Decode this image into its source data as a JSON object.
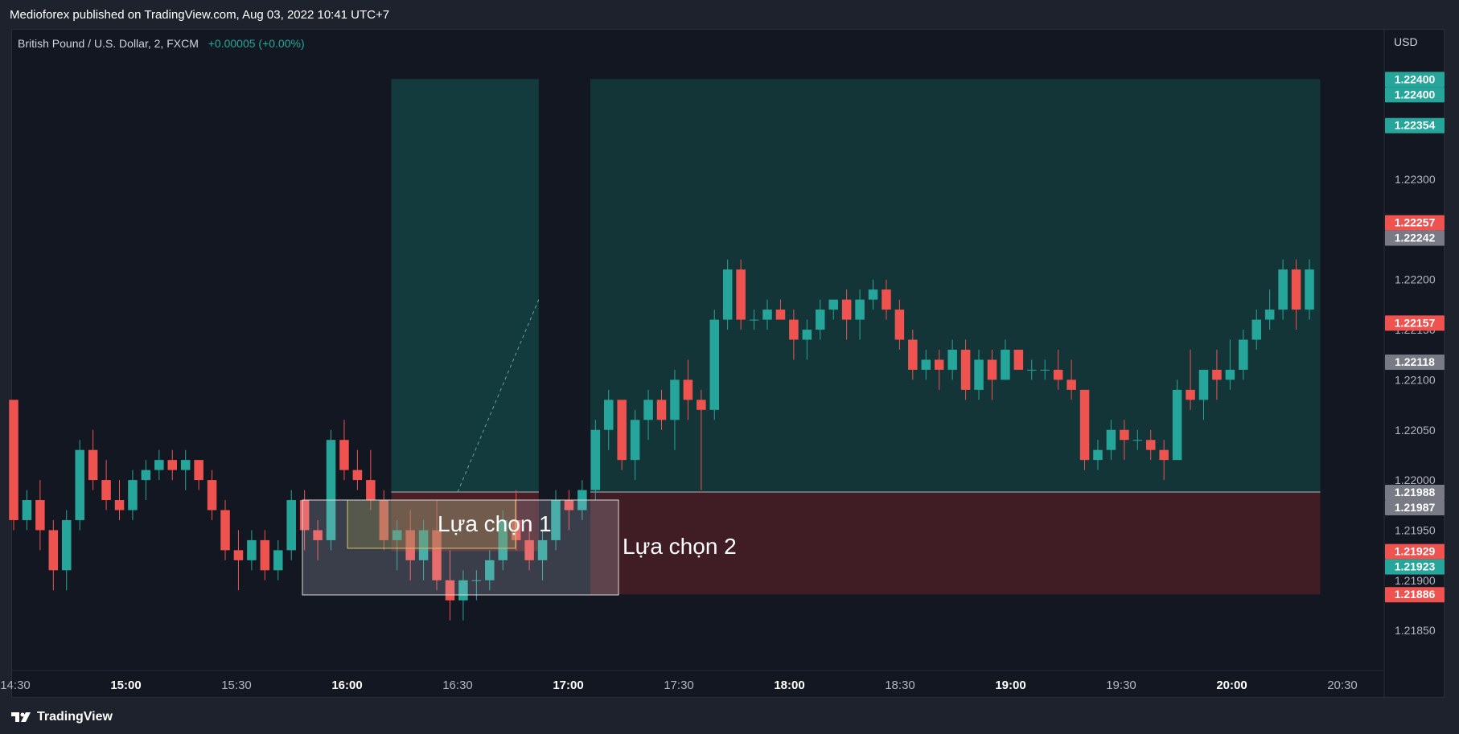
{
  "header": {
    "publisher_text": "Medioforex published on TradingView.com, Aug 03, 2022 10:41 UTC+7"
  },
  "symbol": {
    "title": "British Pound / U.S. Dollar, 2, FXCM",
    "change": "+0.00005 (+0.00%)"
  },
  "axis": {
    "currency": "USD"
  },
  "annotations": {
    "option1": "Lựa chọn 1",
    "option2": "Lựa chọn 2"
  },
  "footer": {
    "brand": "TradingView"
  },
  "colors": {
    "up": "#26a69a",
    "down": "#ef5350",
    "background": "#131722",
    "profit_zone": "#0f3b3a",
    "loss_zone": "#43212a",
    "grey_label": "#787b86"
  },
  "chart_data": {
    "type": "candlestick",
    "interval": "2 minutes",
    "x_tick_labels": [
      "14:30",
      "15:00",
      "15:30",
      "16:00",
      "16:30",
      "17:00",
      "17:30",
      "18:00",
      "18:30",
      "19:00",
      "19:30",
      "20:00",
      "20:30"
    ],
    "x_tick_bold": [
      false,
      true,
      false,
      true,
      false,
      true,
      false,
      true,
      false,
      true,
      false,
      true,
      false
    ],
    "y_tick_labels": [
      "1.21850",
      "1.21900",
      "1.21950",
      "1.22000",
      "1.22050",
      "1.22100",
      "1.22150",
      "1.22200",
      "1.22250",
      "1.22300",
      "1.22350",
      "1.22400"
    ],
    "ylim": [
      1.2181,
      1.2245
    ],
    "price_labels": [
      {
        "value": "1.22400",
        "color": "#26a69a"
      },
      {
        "value": "1.22400",
        "color": "#26a69a"
      },
      {
        "value": "1.22354",
        "color": "#26a69a"
      },
      {
        "value": "1.22257",
        "color": "#ef5350"
      },
      {
        "value": "1.22242",
        "color": "#787b86"
      },
      {
        "value": "1.22157",
        "color": "#ef5350"
      },
      {
        "value": "1.22118",
        "color": "#787b86"
      },
      {
        "value": "1.21988",
        "color": "#787b86"
      },
      {
        "value": "1.21987",
        "color": "#787b86"
      },
      {
        "value": "1.21929",
        "color": "#ef5350"
      },
      {
        "value": "1.21923",
        "color": "#26a69a"
      },
      {
        "value": "1.21886",
        "color": "#ef5350"
      }
    ],
    "positions": [
      {
        "name": "Lựa chọn 1",
        "entry": 1.21988,
        "target": 1.224,
        "stop": 1.21929,
        "start": "16:12",
        "end": "16:52"
      },
      {
        "name": "Lựa chọn 2",
        "entry": 1.21988,
        "target": 1.224,
        "stop": 1.21886,
        "start": "17:06",
        "end": "20:24"
      }
    ],
    "candles_ohlc": [
      [
        1.2208,
        1.2208,
        1.2195,
        1.2196
      ],
      [
        1.2196,
        1.2199,
        1.2195,
        1.2198
      ],
      [
        1.2198,
        1.22,
        1.2193,
        1.2195
      ],
      [
        1.2195,
        1.2196,
        1.2189,
        1.2191
      ],
      [
        1.2191,
        1.2197,
        1.2189,
        1.2196
      ],
      [
        1.2196,
        1.2204,
        1.2195,
        1.2203
      ],
      [
        1.2203,
        1.2205,
        1.2199,
        1.22
      ],
      [
        1.22,
        1.2202,
        1.2197,
        1.2198
      ],
      [
        1.2198,
        1.22,
        1.2196,
        1.2197
      ],
      [
        1.2197,
        1.2201,
        1.2196,
        1.22
      ],
      [
        1.22,
        1.2202,
        1.2198,
        1.2201
      ],
      [
        1.2201,
        1.2203,
        1.22,
        1.2202
      ],
      [
        1.2202,
        1.2203,
        1.22,
        1.2201
      ],
      [
        1.2201,
        1.2203,
        1.2199,
        1.2202
      ],
      [
        1.2202,
        1.2202,
        1.2199,
        1.22
      ],
      [
        1.22,
        1.2201,
        1.2196,
        1.2197
      ],
      [
        1.2197,
        1.2198,
        1.2192,
        1.2193
      ],
      [
        1.2193,
        1.2195,
        1.2189,
        1.2192
      ],
      [
        1.2192,
        1.2195,
        1.2191,
        1.2194
      ],
      [
        1.2194,
        1.2195,
        1.219,
        1.2191
      ],
      [
        1.2191,
        1.2194,
        1.219,
        1.2193
      ],
      [
        1.2193,
        1.2199,
        1.2192,
        1.2198
      ],
      [
        1.2198,
        1.2199,
        1.2193,
        1.2195
      ],
      [
        1.2195,
        1.2196,
        1.2192,
        1.2194
      ],
      [
        1.2194,
        1.2205,
        1.2193,
        1.2204
      ],
      [
        1.2204,
        1.2206,
        1.22,
        1.2201
      ],
      [
        1.2201,
        1.2203,
        1.2199,
        1.22
      ],
      [
        1.22,
        1.2203,
        1.2197,
        1.2198
      ],
      [
        1.2198,
        1.2199,
        1.2193,
        1.2194
      ],
      [
        1.2194,
        1.2196,
        1.2191,
        1.2195
      ],
      [
        1.2195,
        1.2197,
        1.219,
        1.2192
      ],
      [
        1.2192,
        1.2196,
        1.219,
        1.2195
      ],
      [
        1.2195,
        1.2198,
        1.2189,
        1.219
      ],
      [
        1.219,
        1.2193,
        1.2186,
        1.2188
      ],
      [
        1.2188,
        1.2191,
        1.2186,
        1.219
      ],
      [
        1.219,
        1.2191,
        1.2188,
        1.219
      ],
      [
        1.219,
        1.2193,
        1.2189,
        1.2192
      ],
      [
        1.2192,
        1.2197,
        1.2191,
        1.2196
      ],
      [
        1.2196,
        1.2199,
        1.2193,
        1.2194
      ],
      [
        1.2194,
        1.2196,
        1.2191,
        1.2192
      ],
      [
        1.2192,
        1.2195,
        1.219,
        1.2194
      ],
      [
        1.2194,
        1.2199,
        1.2193,
        1.2198
      ],
      [
        1.2198,
        1.2199,
        1.2195,
        1.2197
      ],
      [
        1.2197,
        1.22,
        1.2196,
        1.2199
      ],
      [
        1.2199,
        1.2206,
        1.2198,
        1.2205
      ],
      [
        1.2205,
        1.2209,
        1.2203,
        1.2208
      ],
      [
        1.2208,
        1.2208,
        1.2201,
        1.2202
      ],
      [
        1.2202,
        1.2207,
        1.22,
        1.2206
      ],
      [
        1.2206,
        1.2209,
        1.2204,
        1.2208
      ],
      [
        1.2208,
        1.2209,
        1.2205,
        1.2206
      ],
      [
        1.2206,
        1.2211,
        1.2203,
        1.221
      ],
      [
        1.221,
        1.2212,
        1.2206,
        1.2208
      ],
      [
        1.2208,
        1.2209,
        1.2199,
        1.2207
      ],
      [
        1.2207,
        1.2217,
        1.2206,
        1.2216
      ],
      [
        1.2216,
        1.2222,
        1.2215,
        1.2221
      ],
      [
        1.2221,
        1.2222,
        1.2215,
        1.2216
      ],
      [
        1.2216,
        1.2217,
        1.2215,
        1.2216
      ],
      [
        1.2216,
        1.2218,
        1.2215,
        1.2217
      ],
      [
        1.2217,
        1.2218,
        1.2216,
        1.2216
      ],
      [
        1.2216,
        1.2217,
        1.2212,
        1.2214
      ],
      [
        1.2214,
        1.2216,
        1.2212,
        1.2215
      ],
      [
        1.2215,
        1.2218,
        1.2214,
        1.2217
      ],
      [
        1.2217,
        1.2218,
        1.2216,
        1.2218
      ],
      [
        1.2218,
        1.2219,
        1.2214,
        1.2216
      ],
      [
        1.2216,
        1.2219,
        1.2214,
        1.2218
      ],
      [
        1.2218,
        1.222,
        1.2217,
        1.2219
      ],
      [
        1.2219,
        1.222,
        1.2216,
        1.2217
      ],
      [
        1.2217,
        1.2218,
        1.2213,
        1.2214
      ],
      [
        1.2214,
        1.2215,
        1.221,
        1.2211
      ],
      [
        1.2211,
        1.2213,
        1.221,
        1.2212
      ],
      [
        1.2212,
        1.2213,
        1.2209,
        1.2211
      ],
      [
        1.2211,
        1.2214,
        1.221,
        1.2213
      ],
      [
        1.2213,
        1.2214,
        1.2208,
        1.2209
      ],
      [
        1.2209,
        1.2213,
        1.2208,
        1.2212
      ],
      [
        1.2212,
        1.2213,
        1.2208,
        1.221
      ],
      [
        1.221,
        1.2214,
        1.221,
        1.2213
      ],
      [
        1.2213,
        1.2213,
        1.2211,
        1.2211
      ],
      [
        1.2211,
        1.2212,
        1.221,
        1.2211
      ],
      [
        1.2211,
        1.2212,
        1.221,
        1.2211
      ],
      [
        1.2211,
        1.2213,
        1.2209,
        1.221
      ],
      [
        1.221,
        1.2212,
        1.2208,
        1.2209
      ],
      [
        1.2209,
        1.2209,
        1.2201,
        1.2202
      ],
      [
        1.2202,
        1.2204,
        1.2201,
        1.2203
      ],
      [
        1.2203,
        1.2206,
        1.2202,
        1.2205
      ],
      [
        1.2205,
        1.2206,
        1.2202,
        1.2204
      ],
      [
        1.2204,
        1.2205,
        1.2203,
        1.2204
      ],
      [
        1.2204,
        1.2205,
        1.2202,
        1.2203
      ],
      [
        1.2203,
        1.2204,
        1.22,
        1.2202
      ],
      [
        1.2202,
        1.221,
        1.2202,
        1.2209
      ],
      [
        1.2209,
        1.2213,
        1.2207,
        1.2208
      ],
      [
        1.2208,
        1.2211,
        1.2206,
        1.2211
      ],
      [
        1.2211,
        1.2213,
        1.2208,
        1.221
      ],
      [
        1.221,
        1.2214,
        1.2209,
        1.2211
      ],
      [
        1.2211,
        1.2215,
        1.221,
        1.2214
      ],
      [
        1.2214,
        1.2217,
        1.2213,
        1.2216
      ],
      [
        1.2216,
        1.2219,
        1.2215,
        1.2217
      ],
      [
        1.2217,
        1.2222,
        1.2216,
        1.2221
      ],
      [
        1.2221,
        1.2222,
        1.2215,
        1.2217
      ],
      [
        1.2217,
        1.2222,
        1.2216,
        1.2221
      ]
    ]
  }
}
